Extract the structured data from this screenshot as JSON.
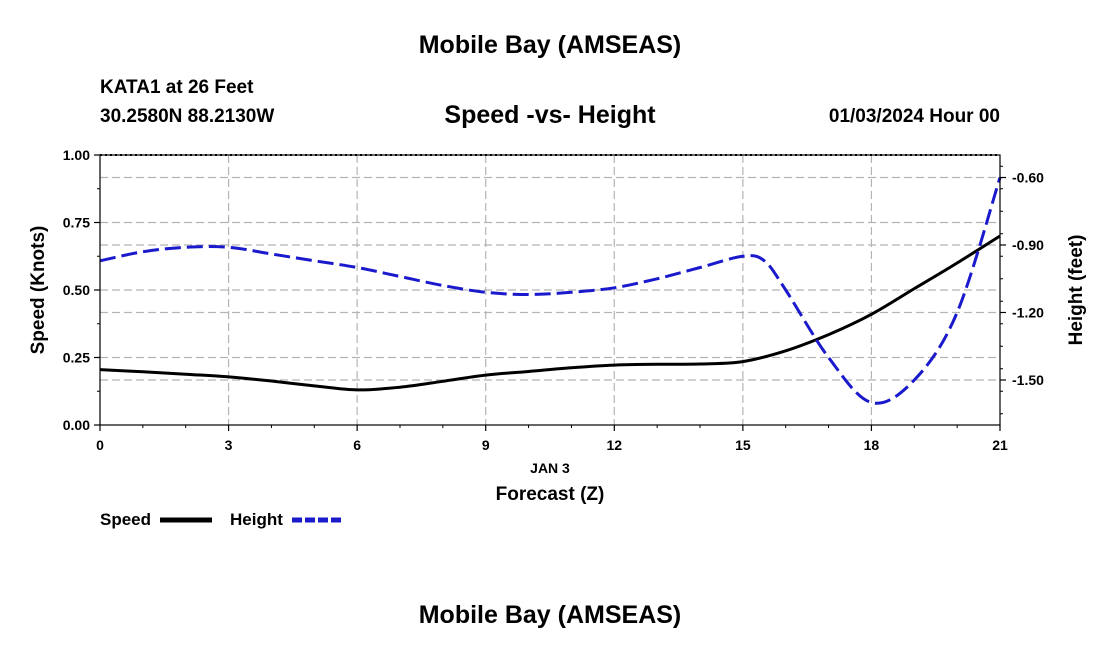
{
  "header": {
    "title": "Mobile Bay (AMSEAS)",
    "station": "KATA1 at 26 Feet",
    "coords": "30.2580N  88.2130W",
    "date": "01/03/2024 Hour 00"
  },
  "footer": {
    "title": "Mobile Bay (AMSEAS)"
  },
  "colors": {
    "speed": "#000000",
    "height": "#1a1acc",
    "grid": "#b4b4b4"
  },
  "chart_data": {
    "type": "line",
    "title": "Speed -vs- Height",
    "xlabel": "Forecast (Z)",
    "xsublabel": "JAN 3",
    "ylabel": "Speed (Knots)",
    "y2label": "Height (feet)",
    "xlim": [
      0,
      21
    ],
    "ylim": [
      0,
      1.0
    ],
    "y2lim": [
      -1.7,
      -0.5
    ],
    "x_ticks": [
      "0",
      "3",
      "6",
      "9",
      "12",
      "15",
      "18",
      "21"
    ],
    "y_ticks": [
      "0.00",
      "0.25",
      "0.50",
      "0.75",
      "1.00"
    ],
    "y2_ticks": [
      "-1.50",
      "-1.20",
      "-0.90",
      "-0.60"
    ],
    "grid": true,
    "series": [
      {
        "name": "Speed",
        "axis": "left",
        "style": "solid",
        "x": [
          0,
          1,
          2,
          3,
          4,
          5,
          6,
          7,
          8,
          9,
          10,
          11,
          12,
          13,
          14,
          15,
          16,
          17,
          18,
          19,
          20,
          21
        ],
        "values": [
          0.205,
          0.197,
          0.188,
          0.178,
          0.163,
          0.145,
          0.13,
          0.14,
          0.162,
          0.185,
          0.198,
          0.212,
          0.222,
          0.225,
          0.226,
          0.235,
          0.275,
          0.335,
          0.41,
          0.505,
          0.6,
          0.7
        ]
      },
      {
        "name": "Height",
        "axis": "right",
        "style": "dashed",
        "x": [
          0,
          1,
          2,
          3,
          4,
          5,
          6,
          7,
          8,
          9,
          10,
          11,
          12,
          13,
          14,
          15,
          15.5,
          16,
          17,
          18,
          19,
          20,
          21
        ],
        "values": [
          -0.97,
          -0.93,
          -0.91,
          -0.91,
          -0.94,
          -0.97,
          -1.0,
          -1.04,
          -1.08,
          -1.11,
          -1.12,
          -1.11,
          -1.09,
          -1.05,
          -1.0,
          -0.95,
          -0.97,
          -1.1,
          -1.4,
          -1.6,
          -1.5,
          -1.2,
          -0.6
        ]
      }
    ],
    "legend": [
      "Speed",
      "Height"
    ]
  }
}
